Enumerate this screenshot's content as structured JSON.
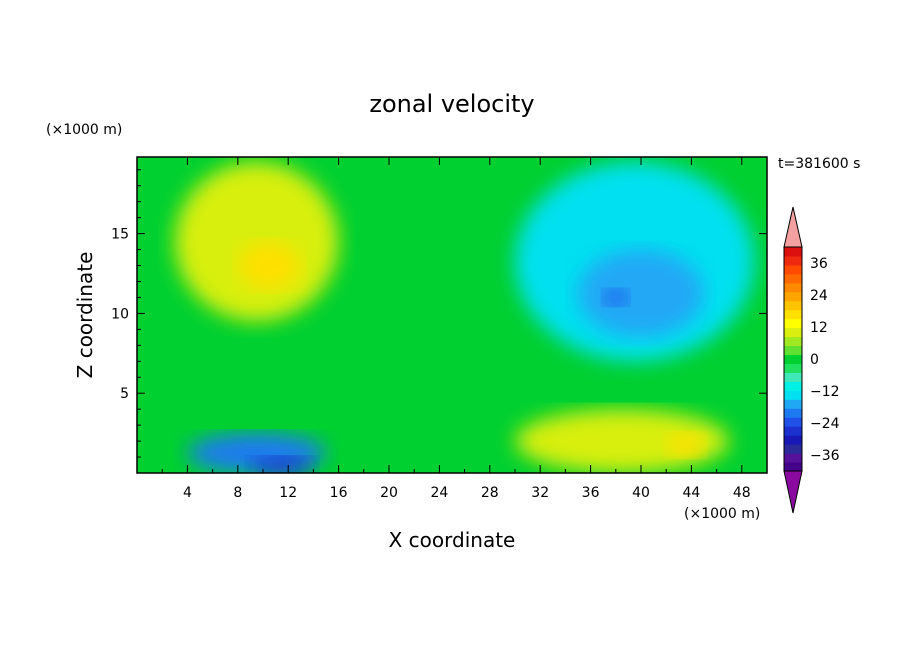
{
  "chart_data": {
    "type": "heatmap",
    "title": "zonal velocity",
    "xlabel": "X coordinate",
    "ylabel": "Z coordinate",
    "x_unit": "(×1000 m)",
    "y_unit": "(×1000 m)",
    "time_label": "t=381600 s",
    "xlim": [
      0,
      50
    ],
    "ylim": [
      0,
      19.8
    ],
    "x_ticks": [
      4,
      8,
      12,
      16,
      20,
      24,
      28,
      32,
      36,
      40,
      44,
      48
    ],
    "y_ticks": [
      5,
      10,
      15
    ],
    "colorbar": {
      "levels": [
        -42,
        -39,
        -36,
        -33,
        -30,
        -27,
        -24,
        -21,
        -18,
        -15,
        -12,
        -9,
        -6,
        -3,
        0,
        3,
        6,
        9,
        12,
        15,
        18,
        21,
        24,
        27,
        30,
        33,
        36,
        39,
        42
      ],
      "tick_values": [
        36,
        24,
        12,
        0,
        -12,
        -24,
        -36
      ],
      "tick_labels": [
        "36",
        "24",
        "12",
        "0",
        "−12",
        "−24",
        "−36"
      ],
      "colors": [
        "#440088",
        "#551199",
        "#2a2a9a",
        "#1818b4",
        "#1c30d0",
        "#2050e8",
        "#1e7af0",
        "#20a8f5",
        "#00e0f0",
        "#00f0e4",
        "#40e8b8",
        "#20e060",
        "#00d030",
        "#60e030",
        "#a0e820",
        "#d8ef10",
        "#ffff00",
        "#ffe000",
        "#ffc400",
        "#ffa400",
        "#ff8a00",
        "#ff6a00",
        "#ff4a00",
        "#ee2a10",
        "#dd1010"
      ],
      "over_color": "#f4a0a0",
      "under_color": "#8a0aa0"
    },
    "field_regions": [
      {
        "name": "upper-left positive core",
        "x": [
          8,
          13
        ],
        "z": [
          11.5,
          14.5
        ],
        "value": 16
      },
      {
        "name": "upper-left positive",
        "x": [
          3,
          16
        ],
        "z": [
          9.5,
          19.5
        ],
        "value": 10
      },
      {
        "name": "upper-right negative core",
        "x": [
          37,
          39
        ],
        "z": [
          10.5,
          11.5
        ],
        "value": -20
      },
      {
        "name": "upper-right negative",
        "x": [
          35,
          45
        ],
        "z": [
          8.5,
          14
        ],
        "value": -15
      },
      {
        "name": "upper-right cyan region",
        "x": [
          30,
          49
        ],
        "z": [
          7,
          19.5
        ],
        "value": -10
      },
      {
        "name": "lower-left negative core",
        "x": [
          9,
          14
        ],
        "z": [
          0,
          1
        ],
        "value": -24
      },
      {
        "name": "lower-left negative",
        "x": [
          4,
          15
        ],
        "z": [
          0,
          2.5
        ],
        "value": -18
      },
      {
        "name": "lower-right positive core",
        "x": [
          42,
          45
        ],
        "z": [
          1,
          2.5
        ],
        "value": 16
      },
      {
        "name": "lower-right positive",
        "x": [
          30,
          47
        ],
        "z": [
          0,
          4
        ],
        "value": 10
      }
    ]
  }
}
